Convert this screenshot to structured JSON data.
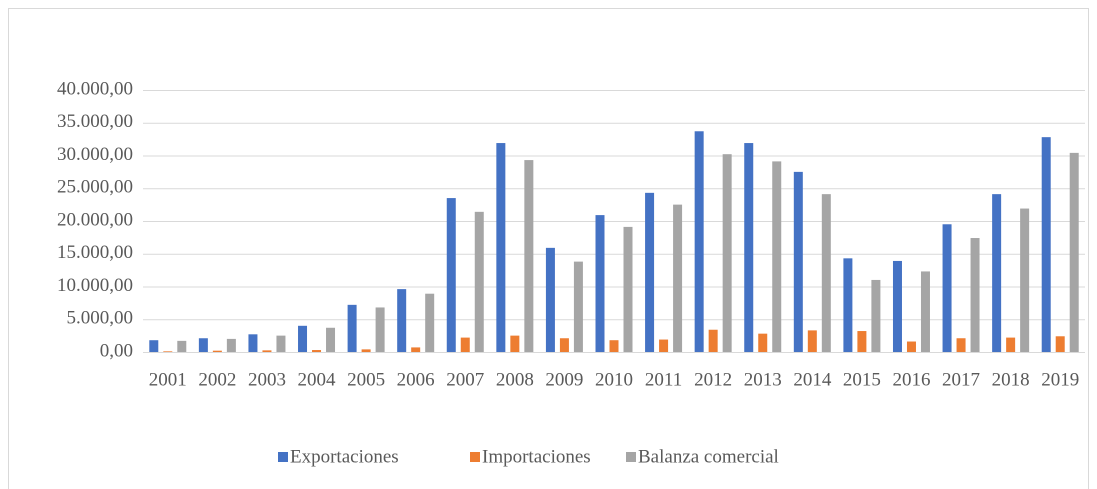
{
  "chart_data": {
    "type": "bar",
    "categories": [
      "2001",
      "2002",
      "2003",
      "2004",
      "2005",
      "2006",
      "2007",
      "2008",
      "2009",
      "2010",
      "2011",
      "2012",
      "2013",
      "2014",
      "2015",
      "2016",
      "2017",
      "2018",
      "2019"
    ],
    "series": [
      {
        "name": "Exportaciones",
        "color": "#4472c4",
        "values": [
          1800,
          2100,
          2700,
          4000,
          7200,
          9600,
          23500,
          31900,
          15900,
          20900,
          24300,
          33700,
          31900,
          27500,
          14300,
          13900,
          19500,
          24100,
          32800
        ]
      },
      {
        "name": "Importaciones",
        "color": "#ed7d31",
        "values": [
          100,
          200,
          250,
          300,
          400,
          700,
          2200,
          2500,
          2100,
          1800,
          1900,
          3400,
          2800,
          3300,
          3200,
          1600,
          2100,
          2200,
          2400
        ]
      },
      {
        "name": "Balanza comercial",
        "color": "#a5a5a5",
        "values": [
          1700,
          2000,
          2500,
          3700,
          6800,
          8900,
          21400,
          29300,
          13800,
          19100,
          22500,
          30200,
          29100,
          24100,
          11000,
          12300,
          17400,
          21900,
          30400
        ]
      }
    ],
    "ylim": [
      0,
      40000
    ],
    "yticks": [
      {
        "value": 0,
        "label": "0,00"
      },
      {
        "value": 5000,
        "label": "5.000,00"
      },
      {
        "value": 10000,
        "label": "10.000,00"
      },
      {
        "value": 15000,
        "label": "15.000,00"
      },
      {
        "value": 20000,
        "label": "20.000,00"
      },
      {
        "value": 25000,
        "label": "25.000,00"
      },
      {
        "value": 30000,
        "label": "30.000,00"
      },
      {
        "value": 35000,
        "label": "35.000,00"
      },
      {
        "value": 40000,
        "label": "40.000,00"
      }
    ],
    "grid": true,
    "legend": "bottom"
  }
}
